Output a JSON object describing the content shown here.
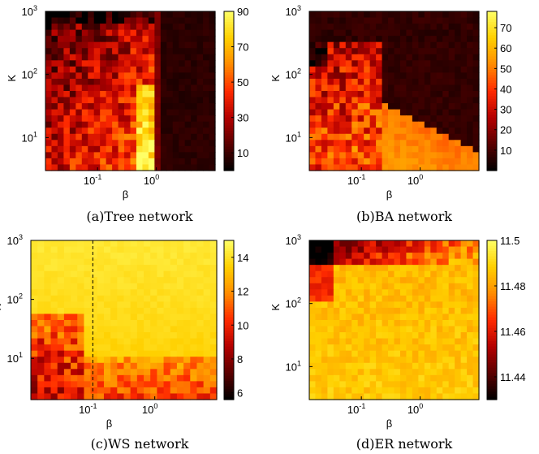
{
  "colormap": [
    "#000000",
    "#5a0000",
    "#b40000",
    "#ff2a00",
    "#ff8c00",
    "#ffd000",
    "#ffff66"
  ],
  "chart_data": [
    {
      "type": "heatmap",
      "caption": "(a)Tree network",
      "xlabel": "β",
      "ylabel": "K",
      "xscale": "log",
      "yscale": "log",
      "xticks": [
        {
          "value": 0.1,
          "base": "10",
          "exp": "-1"
        },
        {
          "value": 1,
          "base": "10",
          "exp": "0"
        }
      ],
      "yticks": [
        {
          "value": 10,
          "base": "10",
          "exp": "1"
        },
        {
          "value": 100,
          "base": "10",
          "exp": "2"
        },
        {
          "value": 1000,
          "base": "10",
          "exp": "3"
        }
      ],
      "xlim": [
        0.013,
        10
      ],
      "ylim": [
        3,
        1000
      ],
      "colorbar": {
        "min": 0,
        "max": 90,
        "ticks": [
          "90",
          "70",
          "50",
          "30",
          "10"
        ],
        "tick_values": [
          90,
          70,
          50,
          30,
          10
        ]
      },
      "pattern": "tree",
      "seed": 11
    },
    {
      "type": "heatmap",
      "caption": "(b)BA network",
      "xlabel": "β",
      "ylabel": "K",
      "xscale": "log",
      "yscale": "log",
      "xticks": [
        {
          "value": 0.1,
          "base": "10",
          "exp": "-1"
        },
        {
          "value": 1,
          "base": "10",
          "exp": "0"
        }
      ],
      "yticks": [
        {
          "value": 10,
          "base": "10",
          "exp": "1"
        },
        {
          "value": 100,
          "base": "10",
          "exp": "2"
        },
        {
          "value": 1000,
          "base": "10",
          "exp": "3"
        }
      ],
      "xlim": [
        0.013,
        10
      ],
      "ylim": [
        3,
        1000
      ],
      "colorbar": {
        "min": 0,
        "max": 78,
        "ticks": [
          "70",
          "60",
          "50",
          "40",
          "30",
          "20",
          "10"
        ],
        "tick_values": [
          70,
          60,
          50,
          40,
          30,
          20,
          10
        ]
      },
      "pattern": "ba",
      "seed": 23
    },
    {
      "type": "heatmap",
      "caption": "(c)WS network",
      "xlabel": "β",
      "ylabel": "K",
      "xscale": "log",
      "yscale": "log",
      "xticks": [
        {
          "value": 0.1,
          "base": "10",
          "exp": "-1"
        },
        {
          "value": 1,
          "base": "10",
          "exp": "0"
        }
      ],
      "yticks": [
        {
          "value": 10,
          "base": "10",
          "exp": "1"
        },
        {
          "value": 100,
          "base": "10",
          "exp": "2"
        },
        {
          "value": 1000,
          "base": "10",
          "exp": "3"
        }
      ],
      "xlim": [
        0.01,
        10
      ],
      "ylim": [
        2,
        1000
      ],
      "colorbar": {
        "min": 5.6,
        "max": 15,
        "ticks": [
          "14",
          "12",
          "10",
          "8",
          "6"
        ],
        "tick_values": [
          14,
          12,
          10,
          8,
          6
        ]
      },
      "pattern": "ws",
      "reference_line_x": 0.1,
      "seed": 37
    },
    {
      "type": "heatmap",
      "caption": "(d)ER network",
      "xlabel": "β",
      "ylabel": "K",
      "xscale": "log",
      "yscale": "log",
      "xticks": [
        {
          "value": 0.1,
          "base": "10",
          "exp": "-1"
        },
        {
          "value": 1,
          "base": "10",
          "exp": "0"
        }
      ],
      "yticks": [
        {
          "value": 10,
          "base": "10",
          "exp": "1"
        },
        {
          "value": 100,
          "base": "10",
          "exp": "2"
        },
        {
          "value": 1000,
          "base": "10",
          "exp": "3"
        }
      ],
      "xlim": [
        0.013,
        10
      ],
      "ylim": [
        3,
        1000
      ],
      "colorbar": {
        "min": 11.43,
        "max": 11.5,
        "ticks": [
          "11.5",
          "11.48",
          "11.46",
          "11.44"
        ],
        "tick_values": [
          11.5,
          11.48,
          11.46,
          11.44
        ]
      },
      "pattern": "er",
      "seed": 53
    }
  ]
}
